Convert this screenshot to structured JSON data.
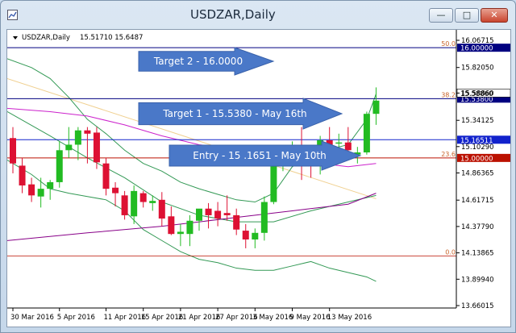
{
  "window": {
    "title": "USDZAR,Daily",
    "buttons": {
      "minimize": "—",
      "maximize": "□",
      "close": "✕"
    },
    "icons": {
      "app": "chart-window-icon",
      "minimize": "minimize-icon",
      "maximize": "maximize-icon",
      "close": "close-icon"
    }
  },
  "chart_info": {
    "label": "USDZAR,Daily",
    "ohlc": "15.51710 15.6487"
  },
  "colors": {
    "bull": "#22bb22",
    "bear": "#dd1133",
    "navy_line": "#000080",
    "blue_line": "#1122cc",
    "red_line": "#bb1100",
    "bollinger": "#339955",
    "ma_purple": "#880088",
    "ma_magenta": "#cc22cc",
    "trend_yellow": "#f0d090",
    "arrow": "#4a78c8"
  },
  "chart_data": {
    "type": "candlestick",
    "title": "USDZAR,Daily",
    "ylim": [
      13.6,
      16.17
    ],
    "y_ticks": [
      "16.06715",
      "15.82050",
      "15.58860",
      "15.34125",
      "15.10290",
      "14.86365",
      "14.61715",
      "14.37790",
      "14.13865",
      "13.89940",
      "13.66015"
    ],
    "y_tick_values": [
      16.06715,
      15.8205,
      15.5886,
      15.34125,
      15.1029,
      14.86365,
      14.61715,
      14.3779,
      14.13865,
      13.8994,
      13.66015
    ],
    "x_labels": [
      "30 Mar 2016",
      "5 Apr 2016",
      "11 Apr 2016",
      "15 Apr 2016",
      "21 Apr 2016",
      "27 Apr 2016",
      "3 May 2016",
      "9 May 2016",
      "13 May 2016"
    ],
    "x_label_index": [
      0,
      5,
      10,
      14,
      18,
      22,
      26,
      30,
      34
    ],
    "candles": [
      {
        "o": 15.18,
        "h": 15.28,
        "l": 14.86,
        "c": 14.95
      },
      {
        "o": 14.93,
        "h": 15.0,
        "l": 14.68,
        "c": 14.75
      },
      {
        "o": 14.76,
        "h": 14.82,
        "l": 14.6,
        "c": 14.66
      },
      {
        "o": 14.65,
        "h": 14.82,
        "l": 14.55,
        "c": 14.72
      },
      {
        "o": 14.72,
        "h": 14.8,
        "l": 14.62,
        "c": 14.78
      },
      {
        "o": 14.78,
        "h": 15.15,
        "l": 14.73,
        "c": 15.07
      },
      {
        "o": 15.07,
        "h": 15.28,
        "l": 15.0,
        "c": 15.12
      },
      {
        "o": 15.12,
        "h": 15.28,
        "l": 14.98,
        "c": 15.25
      },
      {
        "o": 15.25,
        "h": 15.28,
        "l": 14.95,
        "c": 15.22
      },
      {
        "o": 15.23,
        "h": 15.28,
        "l": 14.9,
        "c": 14.96
      },
      {
        "o": 14.95,
        "h": 15.0,
        "l": 14.66,
        "c": 14.72
      },
      {
        "o": 14.73,
        "h": 14.78,
        "l": 14.56,
        "c": 14.68
      },
      {
        "o": 14.66,
        "h": 14.7,
        "l": 14.44,
        "c": 14.48
      },
      {
        "o": 14.47,
        "h": 14.75,
        "l": 14.4,
        "c": 14.7
      },
      {
        "o": 14.68,
        "h": 14.7,
        "l": 14.55,
        "c": 14.6
      },
      {
        "o": 14.59,
        "h": 14.66,
        "l": 14.52,
        "c": 14.61
      },
      {
        "o": 14.62,
        "h": 14.69,
        "l": 14.38,
        "c": 14.45
      },
      {
        "o": 14.47,
        "h": 14.56,
        "l": 14.3,
        "c": 14.31
      },
      {
        "o": 14.31,
        "h": 14.4,
        "l": 14.2,
        "c": 14.33
      },
      {
        "o": 14.31,
        "h": 14.48,
        "l": 14.2,
        "c": 14.43
      },
      {
        "o": 14.43,
        "h": 14.52,
        "l": 14.34,
        "c": 14.54
      },
      {
        "o": 14.54,
        "h": 14.59,
        "l": 14.36,
        "c": 14.48
      },
      {
        "o": 14.52,
        "h": 14.6,
        "l": 14.38,
        "c": 14.45
      },
      {
        "o": 14.5,
        "h": 14.66,
        "l": 14.43,
        "c": 14.48
      },
      {
        "o": 14.48,
        "h": 14.54,
        "l": 14.3,
        "c": 14.35
      },
      {
        "o": 14.34,
        "h": 14.4,
        "l": 14.18,
        "c": 14.26
      },
      {
        "o": 14.26,
        "h": 14.36,
        "l": 14.18,
        "c": 14.32
      },
      {
        "o": 14.32,
        "h": 14.65,
        "l": 14.25,
        "c": 14.6
      },
      {
        "o": 14.6,
        "h": 14.94,
        "l": 14.58,
        "c": 14.94
      },
      {
        "o": 14.95,
        "h": 15.05,
        "l": 14.88,
        "c": 15.03
      },
      {
        "o": 15.03,
        "h": 15.15,
        "l": 14.95,
        "c": 15.1
      },
      {
        "o": 15.09,
        "h": 15.28,
        "l": 14.8,
        "c": 15.02
      },
      {
        "o": 15.02,
        "h": 15.1,
        "l": 14.82,
        "c": 14.96
      },
      {
        "o": 14.95,
        "h": 15.2,
        "l": 14.85,
        "c": 15.16
      },
      {
        "o": 15.16,
        "h": 15.28,
        "l": 15.05,
        "c": 15.12
      },
      {
        "o": 15.13,
        "h": 15.22,
        "l": 15.08,
        "c": 15.14
      },
      {
        "o": 15.14,
        "h": 15.28,
        "l": 15.02,
        "c": 15.07
      },
      {
        "o": 15.03,
        "h": 15.1,
        "l": 14.95,
        "c": 15.05
      },
      {
        "o": 15.05,
        "h": 15.42,
        "l": 15.03,
        "c": 15.4
      },
      {
        "o": 15.4,
        "h": 15.64,
        "l": 15.3,
        "c": 15.52
      }
    ],
    "lines": [
      {
        "value": 16.0,
        "label": "16.00000",
        "color": "navy_line",
        "fib": "50.0"
      },
      {
        "value": 15.538,
        "label": "15.53800",
        "color": "navy_line",
        "fib": "38.2"
      },
      {
        "value": 15.1651,
        "label": "15.16511",
        "color": "blue_line",
        "fib": ""
      },
      {
        "value": 15.0,
        "label": "15.00000",
        "color": "red_line",
        "fib": "23.6"
      },
      {
        "value": 14.11,
        "label": "",
        "color": "red_line",
        "fib": "0.0"
      }
    ],
    "current_price_label": "15.58860",
    "annotations": [
      {
        "text": "Target  2 - 16.0000"
      },
      {
        "text": "Target 1 - 15.5380 - May 16th"
      },
      {
        "text": "Entry - 15 .1651 - May 10th"
      }
    ]
  }
}
